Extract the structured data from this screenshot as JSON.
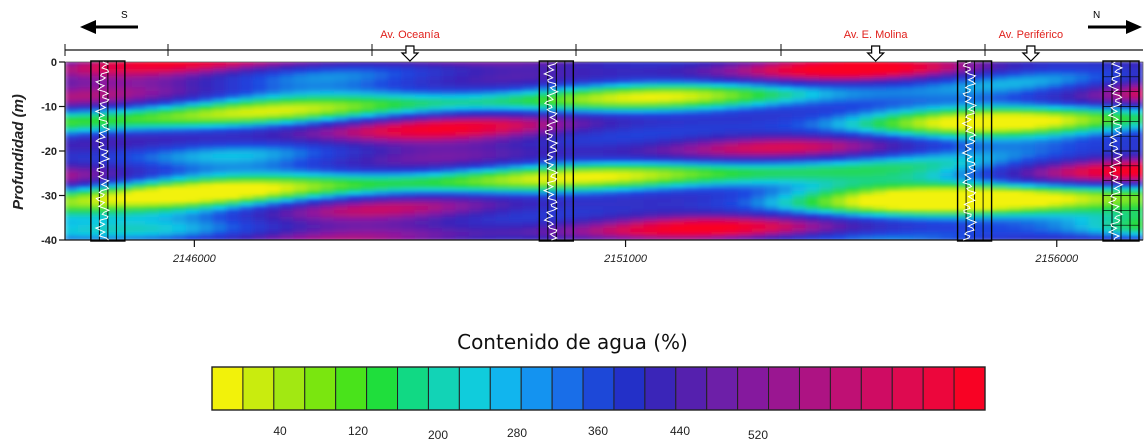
{
  "chart_data": {
    "type": "heatmap",
    "title": "",
    "ylabel": "Profundidad (m)",
    "xlabel": "",
    "ylim": [
      -40,
      0
    ],
    "xlim": [
      2144500,
      2157000
    ],
    "y_ticks": [
      "0",
      "-10",
      "-20",
      "-30",
      "-40"
    ],
    "x_ticks": [
      {
        "value": 2146000,
        "label": "2146000"
      },
      {
        "value": 2151000,
        "label": "2151000"
      },
      {
        "value": 2156000,
        "label": "2156000"
      }
    ],
    "directions": {
      "left": "S",
      "right": "N"
    },
    "landmarks": [
      {
        "label": "Av. Oceanía",
        "x": 2148500
      },
      {
        "label": "Av. E. Molina",
        "x": 2153900
      },
      {
        "label": "Av. Periférico",
        "x": 2155700
      }
    ],
    "wells_x": [
      2144800,
      2150000,
      2154850,
      2157100
    ],
    "colorbar": {
      "title": "Contenido de agua (%)",
      "ticks": [
        "40",
        "120",
        "200",
        "280",
        "360",
        "440",
        "520"
      ],
      "colors": [
        "#f2f20a",
        "#c9ec0e",
        "#a2e812",
        "#7ae60f",
        "#49e31b",
        "#1fde3c",
        "#11d984",
        "#12d3b6",
        "#10ccdc",
        "#11b5ee",
        "#1493f0",
        "#196ee8",
        "#1d48d8",
        "#2330c8",
        "#3a25b8",
        "#5520ae",
        "#6d1fa8",
        "#85199e",
        "#9a1691",
        "#ad1383",
        "#bf1074",
        "#cf0c63",
        "#de0a50",
        "#ec063c",
        "#f80224"
      ]
    }
  }
}
